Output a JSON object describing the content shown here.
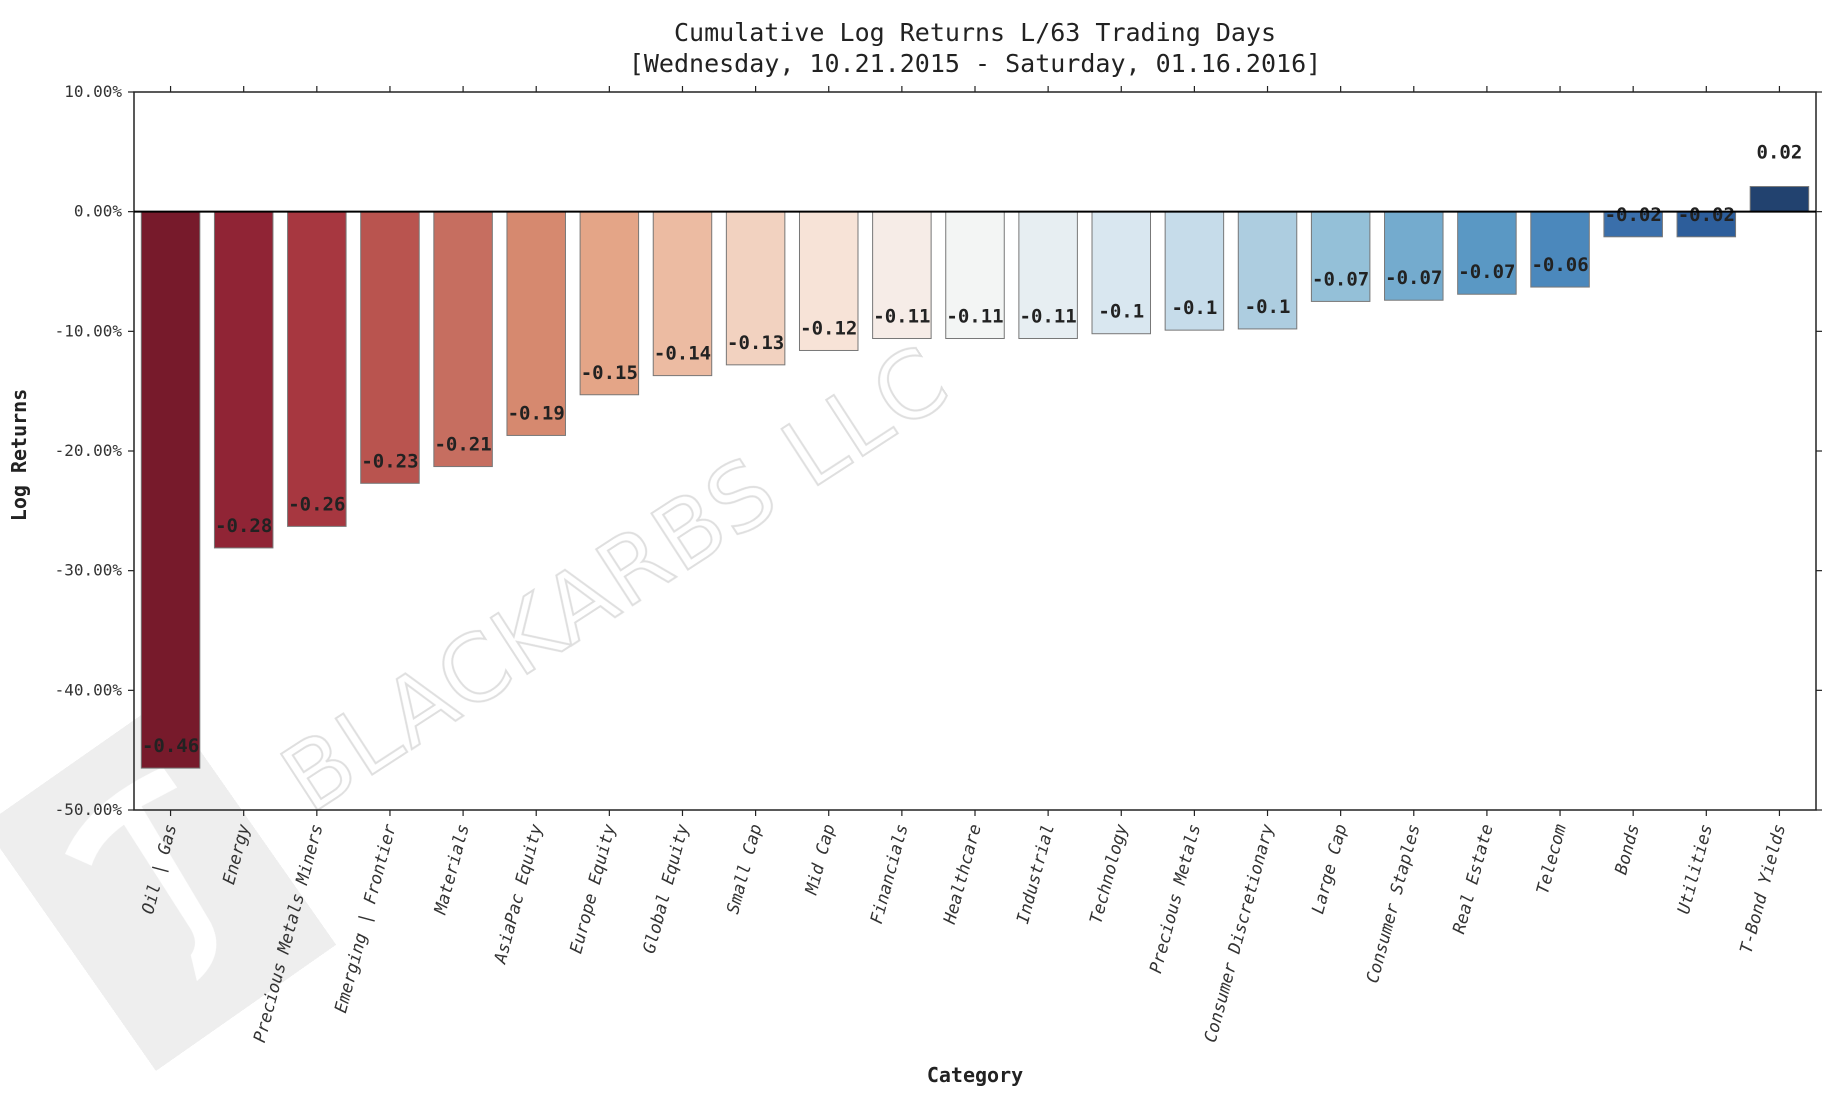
{
  "watermark": {
    "text": "BLACKARBS LLC"
  },
  "chart_data": {
    "type": "bar",
    "title": "Cumulative Log Returns L/63 Trading Days",
    "subtitle": "[Wednesday, 10.21.2015 - Saturday, 01.16.2016]",
    "xlabel": "Category",
    "ylabel": "Log Returns",
    "ylim": [
      -0.5,
      0.1
    ],
    "yticks": [
      0.1,
      0.0,
      -0.1,
      -0.2,
      -0.3,
      -0.4,
      -0.5
    ],
    "ytick_labels": [
      "10.00%",
      "0.00%",
      "-10.00%",
      "-20.00%",
      "-30.00%",
      "-40.00%",
      "-50.00%"
    ],
    "grid": false,
    "categories": [
      "Oil | Gas",
      "Energy",
      "Precious Metals Miners",
      "Emerging | Frontier",
      "Materials",
      "AsiaPac Equity",
      "Europe Equity",
      "Global Equity",
      "Small Cap",
      "Mid Cap",
      "Financials",
      "Healthcare",
      "Industrial",
      "Technology",
      "Precious Metals",
      "Consumer Discretionary",
      "Large Cap",
      "Consumer Staples",
      "Real Estate",
      "Telecom",
      "Bonds",
      "Utilities",
      "T-Bond Yields"
    ],
    "values": [
      -0.465,
      -0.281,
      -0.263,
      -0.227,
      -0.213,
      -0.187,
      -0.153,
      -0.137,
      -0.128,
      -0.116,
      -0.106,
      -0.106,
      -0.106,
      -0.102,
      -0.099,
      -0.098,
      -0.075,
      -0.074,
      -0.069,
      -0.063,
      -0.021,
      -0.021,
      0.021
    ],
    "data_labels": [
      "-0.46",
      "-0.28",
      "-0.26",
      "-0.23",
      "-0.21",
      "-0.19",
      "-0.15",
      "-0.14",
      "-0.13",
      "-0.12",
      "-0.11",
      "-0.11",
      "-0.11",
      "-0.1",
      "-0.1",
      "-0.1",
      "-0.07",
      "-0.07",
      "-0.07",
      "-0.06",
      "-0.02",
      "-0.02",
      "0.02"
    ],
    "colors": [
      "#771a2b",
      "#902435",
      "#a73740",
      "#b9544f",
      "#c66e60",
      "#d6896f",
      "#e4a587",
      "#ecbba2",
      "#f2d2c0",
      "#f7e3d7",
      "#f6ece7",
      "#f3f5f4",
      "#e7eef2",
      "#d9e7f0",
      "#c6dcea",
      "#adcde0",
      "#94c0d8",
      "#74abce",
      "#5a98c4",
      "#4b88bc",
      "#3a6fab",
      "#2d5e9b",
      "#22426f"
    ]
  }
}
